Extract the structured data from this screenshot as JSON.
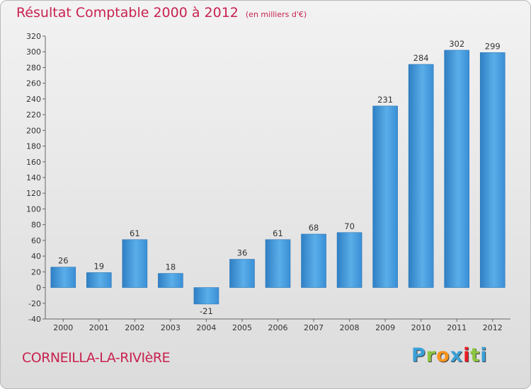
{
  "header": {
    "title": "Résultat Comptable 2000 à 2012",
    "unit": "(en milliers d'€)"
  },
  "footer": {
    "place": "CORNEILLA-LA-RIVIèRE",
    "logo": {
      "letters": [
        "P",
        "r",
        "o",
        "x",
        "i",
        "t",
        "i"
      ],
      "colors": [
        "#3aa0d8",
        "#8cc63f",
        "#f7941d",
        "#3aa0d8",
        "#ed1c24",
        "#8cc63f",
        "#3aa0d8"
      ]
    }
  },
  "colors": {
    "accent": "#c8224f",
    "bar": "#3a8fd6",
    "bar_light": "#6cb8ee"
  },
  "chart_data": {
    "type": "bar",
    "categories": [
      "2000",
      "2001",
      "2002",
      "2003",
      "2004",
      "2005",
      "2006",
      "2007",
      "2008",
      "2009",
      "2010",
      "2011",
      "2012"
    ],
    "values": [
      26,
      19,
      61,
      18,
      -21,
      36,
      61,
      68,
      70,
      231,
      284,
      302,
      299
    ],
    "title": "Résultat Comptable 2000 à 2012",
    "ylim": [
      -40,
      320
    ],
    "yticks": [
      -40,
      -20,
      0,
      20,
      40,
      60,
      80,
      100,
      120,
      140,
      160,
      180,
      200,
      220,
      240,
      260,
      280,
      300,
      320
    ],
    "grid": false,
    "legend": "none"
  }
}
